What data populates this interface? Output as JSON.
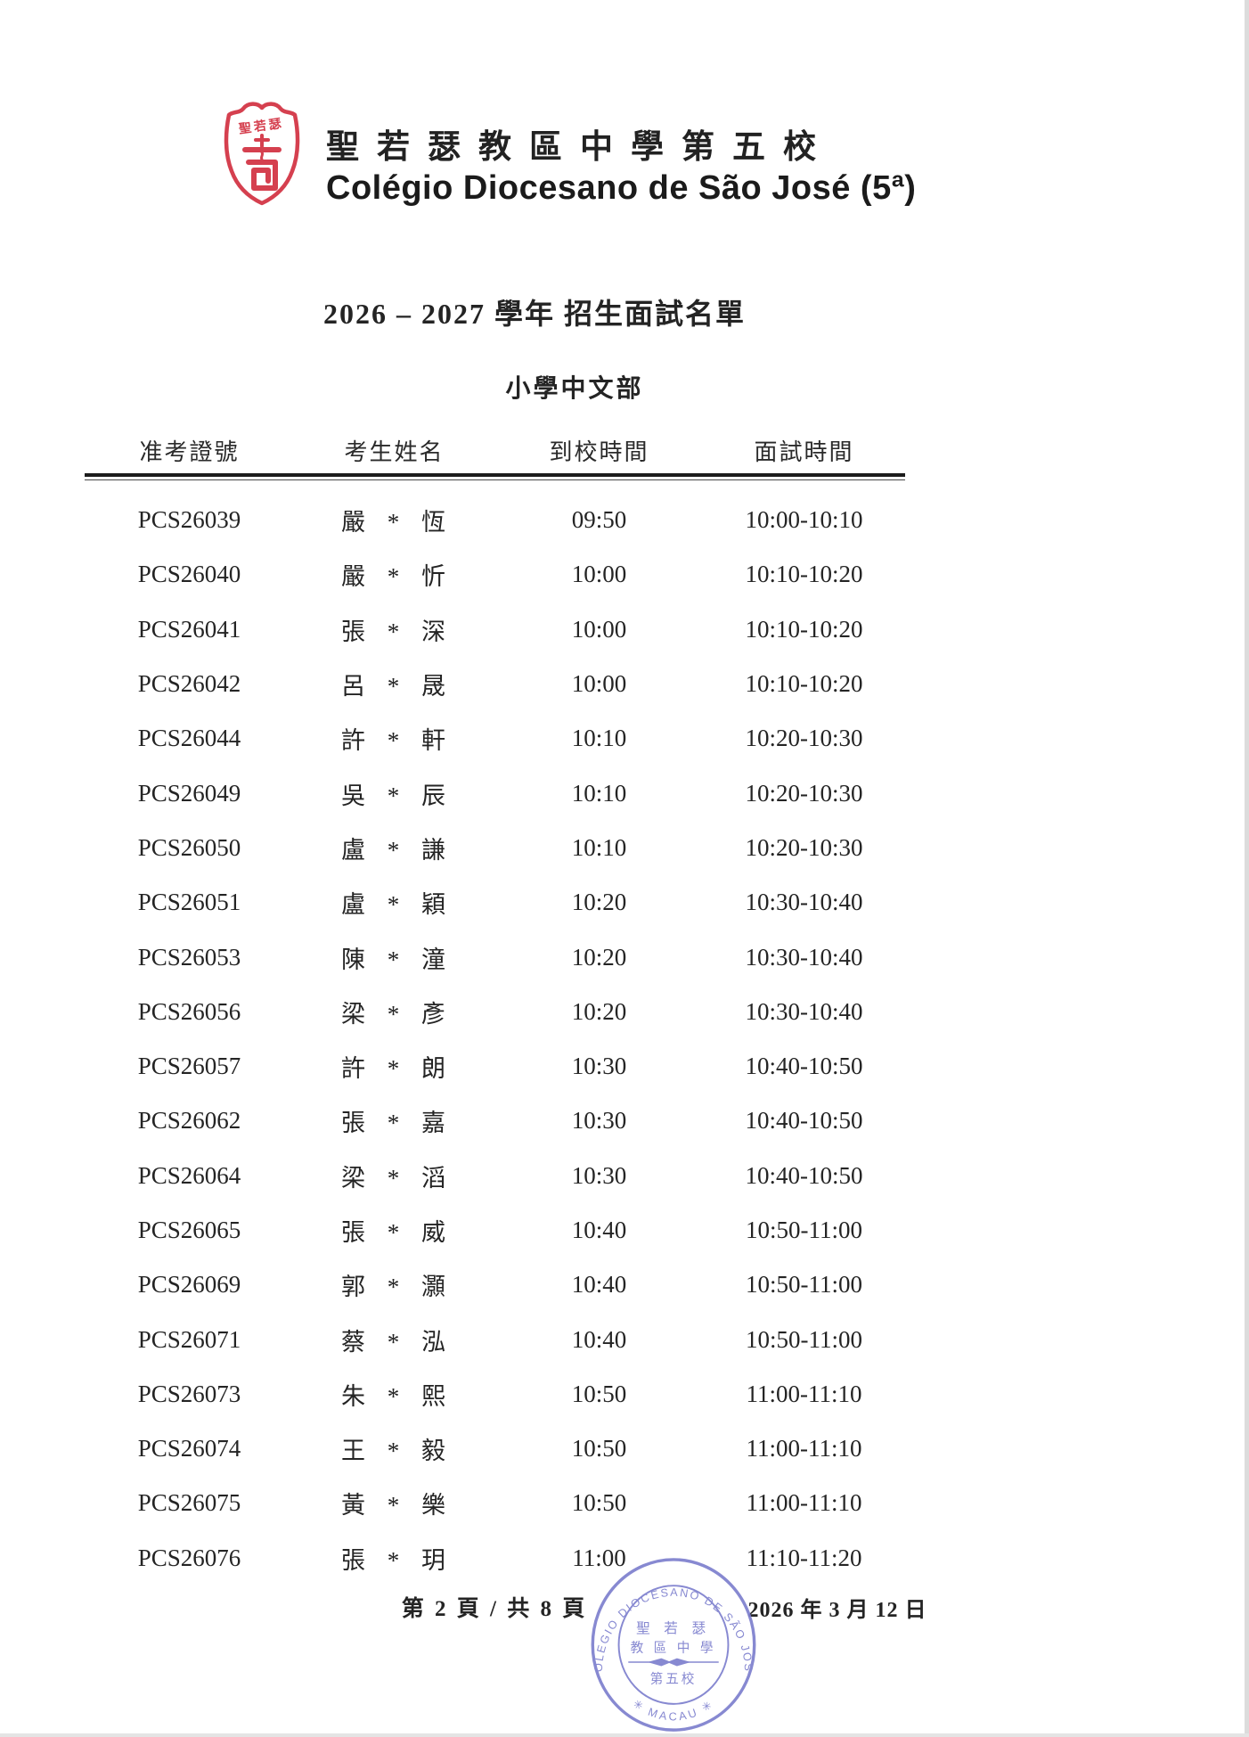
{
  "header": {
    "logo_text": "聖若瑟",
    "school_name_zh": "聖若瑟教區中學第五校",
    "school_name_pt": "Colégio Diocesano de São José (5ª)"
  },
  "doc_title": "2026 – 2027 學年 招生面試名單",
  "section_title": "小學中文部",
  "table": {
    "headers": [
      "准考證號",
      "考生姓名",
      "到校時間",
      "面試時間"
    ],
    "rows": [
      [
        "PCS26039",
        "嚴 * 恆",
        "09:50",
        "10:00-10:10"
      ],
      [
        "PCS26040",
        "嚴 * 忻",
        "10:00",
        "10:10-10:20"
      ],
      [
        "PCS26041",
        "張 * 深",
        "10:00",
        "10:10-10:20"
      ],
      [
        "PCS26042",
        "呂 * 晟",
        "10:00",
        "10:10-10:20"
      ],
      [
        "PCS26044",
        "許 * 軒",
        "10:10",
        "10:20-10:30"
      ],
      [
        "PCS26049",
        "吳 * 辰",
        "10:10",
        "10:20-10:30"
      ],
      [
        "PCS26050",
        "盧 * 謙",
        "10:10",
        "10:20-10:30"
      ],
      [
        "PCS26051",
        "盧 * 穎",
        "10:20",
        "10:30-10:40"
      ],
      [
        "PCS26053",
        "陳 * 潼",
        "10:20",
        "10:30-10:40"
      ],
      [
        "PCS26056",
        "梁 * 彥",
        "10:20",
        "10:30-10:40"
      ],
      [
        "PCS26057",
        "許 * 朗",
        "10:30",
        "10:40-10:50"
      ],
      [
        "PCS26062",
        "張 * 嘉",
        "10:30",
        "10:40-10:50"
      ],
      [
        "PCS26064",
        "梁 * 滔",
        "10:30",
        "10:40-10:50"
      ],
      [
        "PCS26065",
        "張 * 威",
        "10:40",
        "10:50-11:00"
      ],
      [
        "PCS26069",
        "郭 * 灝",
        "10:40",
        "10:50-11:00"
      ],
      [
        "PCS26071",
        "蔡 * 泓",
        "10:40",
        "10:50-11:00"
      ],
      [
        "PCS26073",
        "朱 * 熙",
        "10:50",
        "11:00-11:10"
      ],
      [
        "PCS26074",
        "王 * 毅",
        "10:50",
        "11:00-11:10"
      ],
      [
        "PCS26075",
        "黃 * 樂",
        "10:50",
        "11:00-11:10"
      ],
      [
        "PCS26076",
        "張 * 玥",
        "11:00",
        "11:10-11:20"
      ]
    ]
  },
  "footer": {
    "page_info": "第 2 頁 / 共 8 頁",
    "date": "2026 年 3 月 12 日",
    "stamp": {
      "ring_text": "COLEGIO DIOCESANO DE SÃO JOSÉ",
      "bottom_text": "✳ MACAU ✳",
      "line1": "聖 若 瑟",
      "line2": "教 區 中 學",
      "line3": "第五校"
    }
  },
  "colors": {
    "logo_red": "#d5404f",
    "stamp_purple": "#7d7fce",
    "text": "#1f1f1f"
  }
}
